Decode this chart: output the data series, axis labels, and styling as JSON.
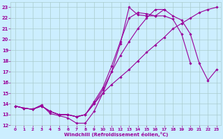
{
  "bg_color": "#cceeff",
  "line_color": "#990099",
  "grid_color": "#aacccc",
  "xlabel": "Windchill (Refroidissement éolien,°C)",
  "xlabel_color": "#990099",
  "tick_color": "#990099",
  "xlim": [
    -0.5,
    23.5
  ],
  "ylim": [
    12,
    23.5
  ],
  "xticks": [
    0,
    1,
    2,
    3,
    4,
    5,
    6,
    7,
    8,
    9,
    10,
    11,
    12,
    13,
    14,
    15,
    16,
    17,
    18,
    19,
    20,
    21,
    22,
    23
  ],
  "yticks": [
    12,
    13,
    14,
    15,
    16,
    17,
    18,
    19,
    20,
    21,
    22,
    23
  ],
  "lines": [
    {
      "x": [
        0,
        1,
        2,
        3,
        4,
        5,
        6,
        7,
        8,
        9,
        10,
        11,
        12,
        13,
        14,
        15,
        16,
        17
      ],
      "y": [
        13.8,
        13.6,
        13.5,
        13.9,
        13.1,
        12.9,
        12.7,
        12.2,
        12.2,
        13.3,
        15.0,
        17.0,
        19.6,
        23.0,
        22.3,
        22.2,
        22.2,
        22.8
      ]
    },
    {
      "x": [
        0,
        1,
        2,
        3,
        4,
        5,
        6,
        7,
        8,
        9,
        10,
        11,
        12,
        13,
        14,
        15,
        16,
        17,
        18,
        19,
        20,
        21,
        22,
        23
      ],
      "y": [
        13.8,
        13.6,
        13.5,
        13.8,
        13.3,
        13.0,
        13.0,
        12.8,
        13.0,
        14.0,
        15.0,
        15.8,
        16.5,
        17.2,
        18.0,
        18.8,
        19.5,
        20.2,
        21.0,
        21.5,
        22.0,
        22.5,
        22.8,
        23.0
      ]
    },
    {
      "x": [
        0,
        1,
        2,
        3,
        4,
        5,
        6,
        7,
        8,
        9,
        10,
        11,
        12,
        13,
        14,
        15,
        16,
        17,
        18,
        19,
        20,
        21,
        22,
        23
      ],
      "y": [
        13.8,
        13.6,
        13.5,
        13.8,
        13.3,
        13.0,
        13.0,
        12.8,
        13.0,
        14.0,
        15.3,
        17.0,
        18.5,
        19.8,
        21.0,
        22.0,
        22.8,
        22.8,
        22.2,
        21.8,
        20.5,
        17.8,
        16.2,
        17.2
      ]
    },
    {
      "x": [
        0,
        1,
        2,
        3,
        4,
        5,
        6,
        7,
        8,
        9,
        10,
        11,
        12,
        13,
        14,
        15,
        16,
        17,
        18,
        19,
        20
      ],
      "y": [
        13.8,
        13.6,
        13.5,
        13.8,
        13.3,
        13.0,
        13.0,
        12.8,
        13.0,
        14.2,
        15.5,
        17.5,
        19.8,
        22.0,
        22.5,
        22.4,
        22.2,
        22.2,
        21.9,
        20.5,
        17.8
      ]
    }
  ]
}
